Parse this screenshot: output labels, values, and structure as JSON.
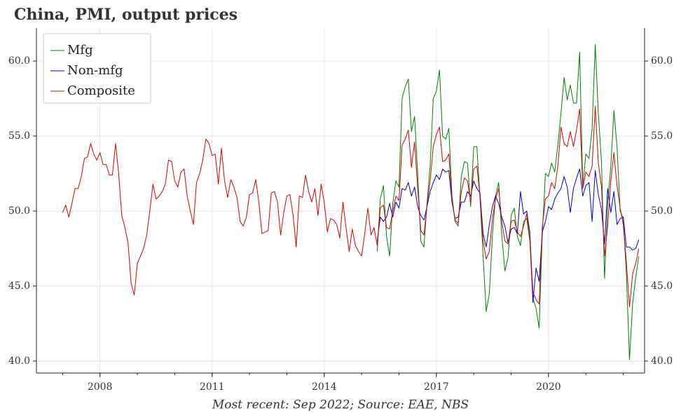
{
  "chart_data": {
    "type": "line",
    "title": "China, PMI, output prices",
    "caption": "Most recent: Sep 2022; Source: EAE, NBS",
    "xlim": [
      2006.3,
      2022.57
    ],
    "xticks": [
      2008,
      2011,
      2014,
      2017,
      2020
    ],
    "ylim": [
      39.2,
      62.2
    ],
    "yticks": [
      {
        "value": 40,
        "label": "40.0"
      },
      {
        "value": 45,
        "label": "45.0"
      },
      {
        "value": 50,
        "label": "50.0"
      },
      {
        "value": 55,
        "label": "55.0"
      },
      {
        "value": 60,
        "label": "60.0"
      }
    ],
    "grid": true,
    "legend": "upper left",
    "x": [
      2007.0,
      2007.083,
      2007.167,
      2007.25,
      2007.333,
      2007.417,
      2007.5,
      2007.583,
      2007.667,
      2007.75,
      2007.833,
      2007.917,
      2008.0,
      2008.083,
      2008.167,
      2008.25,
      2008.333,
      2008.417,
      2008.5,
      2008.583,
      2008.667,
      2008.75,
      2008.833,
      2008.917,
      2009.0,
      2009.083,
      2009.167,
      2009.25,
      2009.333,
      2009.417,
      2009.5,
      2009.583,
      2009.667,
      2009.75,
      2009.833,
      2009.917,
      2010.0,
      2010.083,
      2010.167,
      2010.25,
      2010.333,
      2010.417,
      2010.5,
      2010.583,
      2010.667,
      2010.75,
      2010.833,
      2010.917,
      2011.0,
      2011.083,
      2011.167,
      2011.25,
      2011.333,
      2011.417,
      2011.5,
      2011.583,
      2011.667,
      2011.75,
      2011.833,
      2011.917,
      2012.0,
      2012.083,
      2012.167,
      2012.25,
      2012.333,
      2012.417,
      2012.5,
      2012.583,
      2012.667,
      2012.75,
      2012.833,
      2012.917,
      2013.0,
      2013.083,
      2013.167,
      2013.25,
      2013.333,
      2013.417,
      2013.5,
      2013.583,
      2013.667,
      2013.75,
      2013.833,
      2013.917,
      2014.0,
      2014.083,
      2014.167,
      2014.25,
      2014.333,
      2014.417,
      2014.5,
      2014.583,
      2014.667,
      2014.75,
      2014.833,
      2014.917,
      2015.0,
      2015.083,
      2015.167,
      2015.25,
      2015.333,
      2015.417,
      2015.5,
      2015.583,
      2015.667,
      2015.75,
      2015.833,
      2015.917,
      2016.0,
      2016.083,
      2016.167,
      2016.25,
      2016.333,
      2016.417,
      2016.5,
      2016.583,
      2016.667,
      2016.75,
      2016.833,
      2016.917,
      2017.0,
      2017.083,
      2017.167,
      2017.25,
      2017.333,
      2017.417,
      2017.5,
      2017.583,
      2017.667,
      2017.75,
      2017.833,
      2017.917,
      2018.0,
      2018.083,
      2018.167,
      2018.25,
      2018.333,
      2018.417,
      2018.5,
      2018.583,
      2018.667,
      2018.75,
      2018.833,
      2018.917,
      2019.0,
      2019.083,
      2019.167,
      2019.25,
      2019.333,
      2019.417,
      2019.5,
      2019.583,
      2019.667,
      2019.75,
      2019.833,
      2019.917,
      2020.0,
      2020.083,
      2020.167,
      2020.25,
      2020.333,
      2020.417,
      2020.5,
      2020.583,
      2020.667,
      2020.75,
      2020.833,
      2020.917,
      2021.0,
      2021.083,
      2021.167,
      2021.25,
      2021.333,
      2021.417,
      2021.5,
      2021.583,
      2021.667,
      2021.75,
      2021.833,
      2021.917,
      2022.0,
      2022.083,
      2022.167,
      2022.25,
      2022.333,
      2022.417
    ],
    "series": [
      {
        "name": "Mfg",
        "color": "#008000",
        "values": [
          null,
          null,
          null,
          null,
          null,
          null,
          null,
          null,
          null,
          null,
          null,
          null,
          null,
          null,
          null,
          null,
          null,
          null,
          null,
          null,
          null,
          null,
          null,
          null,
          null,
          null,
          null,
          null,
          null,
          null,
          null,
          null,
          null,
          null,
          null,
          null,
          null,
          null,
          null,
          null,
          null,
          null,
          null,
          null,
          null,
          null,
          null,
          null,
          null,
          null,
          null,
          null,
          null,
          null,
          null,
          null,
          null,
          null,
          null,
          null,
          null,
          null,
          null,
          null,
          null,
          null,
          null,
          null,
          null,
          null,
          null,
          null,
          null,
          null,
          null,
          null,
          null,
          null,
          null,
          null,
          null,
          null,
          null,
          null,
          null,
          null,
          null,
          null,
          null,
          null,
          null,
          null,
          null,
          null,
          null,
          null,
          null,
          null,
          null,
          null,
          null,
          47.3,
          50.8,
          51.7,
          48.3,
          47.0,
          50.5,
          52.0,
          51.6,
          57.5,
          58.3,
          58.8,
          55.3,
          56.3,
          52.5,
          48.0,
          47.6,
          50.5,
          53.0,
          57.5,
          58.0,
          59.4,
          55.0,
          54.8,
          55.5,
          51.0,
          49.3,
          49.0,
          52.3,
          53.3,
          53.2,
          50.3,
          54.3,
          54.3,
          50.9,
          47.0,
          43.3,
          44.5,
          48.4,
          51.0,
          51.9,
          48.4,
          46.0,
          46.9,
          49.7,
          50.2,
          48.3,
          47.7,
          49.3,
          49.5,
          48.0,
          44.2,
          43.5,
          42.2,
          48.4,
          52.5,
          52.3,
          53.2,
          52.6,
          54.4,
          56.5,
          58.9,
          57.4,
          58.4,
          57.2,
          57.2,
          60.6,
          51.7,
          53.8,
          53.5,
          55.5,
          61.1,
          56.5,
          53.3,
          45.5,
          50.5,
          53.0,
          56.7,
          54.3,
          50.0,
          49.5,
          45.8,
          40.1,
          43.8,
          45.6,
          47.0
        ]
      },
      {
        "name": "Non-mfg",
        "color": "#0000cc",
        "values": [
          null,
          null,
          null,
          null,
          null,
          null,
          null,
          null,
          null,
          null,
          null,
          null,
          null,
          null,
          null,
          null,
          null,
          null,
          null,
          null,
          null,
          null,
          null,
          null,
          null,
          null,
          null,
          null,
          null,
          null,
          null,
          null,
          null,
          null,
          null,
          null,
          null,
          null,
          null,
          null,
          null,
          null,
          null,
          null,
          null,
          null,
          null,
          null,
          null,
          null,
          null,
          null,
          null,
          null,
          null,
          null,
          null,
          null,
          null,
          null,
          null,
          null,
          null,
          null,
          null,
          null,
          null,
          null,
          null,
          null,
          null,
          null,
          null,
          null,
          null,
          null,
          null,
          null,
          null,
          null,
          null,
          null,
          null,
          null,
          null,
          null,
          null,
          null,
          null,
          null,
          null,
          null,
          null,
          null,
          null,
          null,
          null,
          null,
          null,
          null,
          null,
          48.0,
          49.6,
          49.3,
          49.6,
          50.5,
          49.6,
          50.6,
          50.2,
          51.5,
          51.4,
          51.9,
          51.0,
          51.6,
          50.3,
          49.7,
          49.4,
          50.3,
          51.3,
          51.9,
          52.4,
          52.1,
          52.8,
          52.6,
          52.7,
          50.6,
          49.5,
          49.6,
          50.6,
          50.6,
          51.3,
          51.0,
          52.0,
          51.5,
          51.2,
          48.5,
          47.6,
          49.1,
          50.3,
          51.0,
          50.5,
          49.6,
          49.0,
          47.9,
          48.8,
          48.9,
          48.5,
          51.3,
          49.8,
          50.0,
          48.6,
          43.9,
          46.2,
          45.3,
          48.6,
          49.3,
          50.3,
          50.1,
          50.8,
          51.2,
          51.5,
          52.3,
          51.6,
          49.9,
          51.5,
          52.2,
          52.8,
          51.0,
          51.7,
          51.9,
          49.3,
          52.7,
          51.1,
          50.1,
          47.8,
          51.5,
          49.9,
          51.3,
          49.1,
          49.5,
          49.6,
          47.6,
          47.6,
          47.4,
          47.5,
          48.1
        ]
      },
      {
        "name": "Composite",
        "color": "#dd0000",
        "values": [
          49.9,
          50.4,
          49.6,
          50.5,
          51.5,
          51.5,
          52.3,
          53.5,
          53.6,
          54.5,
          53.8,
          53.4,
          53.9,
          53.1,
          53.1,
          52.4,
          52.4,
          54.5,
          52.5,
          49.7,
          48.9,
          47.9,
          45.2,
          44.4,
          46.5,
          47.0,
          47.5,
          48.4,
          50.0,
          51.8,
          50.8,
          51.0,
          51.3,
          51.8,
          53.4,
          53.3,
          52.0,
          51.6,
          52.6,
          52.8,
          51.0,
          50.0,
          49.1,
          51.9,
          52.5,
          53.4,
          54.8,
          54.5,
          53.7,
          53.8,
          51.8,
          54.2,
          52.0,
          50.9,
          52.1,
          51.6,
          50.9,
          49.3,
          49.0,
          49.6,
          51.1,
          51.2,
          52.1,
          50.6,
          48.5,
          48.6,
          48.7,
          51.2,
          51.3,
          50.6,
          48.4,
          49.9,
          51.0,
          51.1,
          49.7,
          47.6,
          51.0,
          50.9,
          52.4,
          51.3,
          50.6,
          51.5,
          49.7,
          51.8,
          50.6,
          48.6,
          49.5,
          49.4,
          49.1,
          48.2,
          50.6,
          48.9,
          47.3,
          48.8,
          47.7,
          47.3,
          47.0,
          48.5,
          50.2,
          48.4,
          48.9,
          47.7,
          50.2,
          50.4,
          48.9,
          48.8,
          50.0,
          51.0,
          50.7,
          54.4,
          54.8,
          55.4,
          52.9,
          54.6,
          51.5,
          48.7,
          48.4,
          50.4,
          52.0,
          54.3,
          55.1,
          55.6,
          53.3,
          53.4,
          53.8,
          50.8,
          49.4,
          49.2,
          51.3,
          52.2,
          52.0,
          50.6,
          52.8,
          53.0,
          51.0,
          48.0,
          46.8,
          47.3,
          49.5,
          50.8,
          51.5,
          49.3,
          48.0,
          47.8,
          49.3,
          49.4,
          48.6,
          48.3,
          49.0,
          49.8,
          48.4,
          44.6,
          44.1,
          43.8,
          48.9,
          50.8,
          51.0,
          51.9,
          51.5,
          53.0,
          55.6,
          54.5,
          54.3,
          55.3,
          54.3,
          55.4,
          56.8,
          51.5,
          52.6,
          52.3,
          53.0,
          57.0,
          53.2,
          51.6,
          47.0,
          49.0,
          52.0,
          53.9,
          51.7,
          50.2,
          49.1,
          46.6,
          43.6,
          45.8,
          46.5,
          47.5
        ]
      }
    ]
  }
}
